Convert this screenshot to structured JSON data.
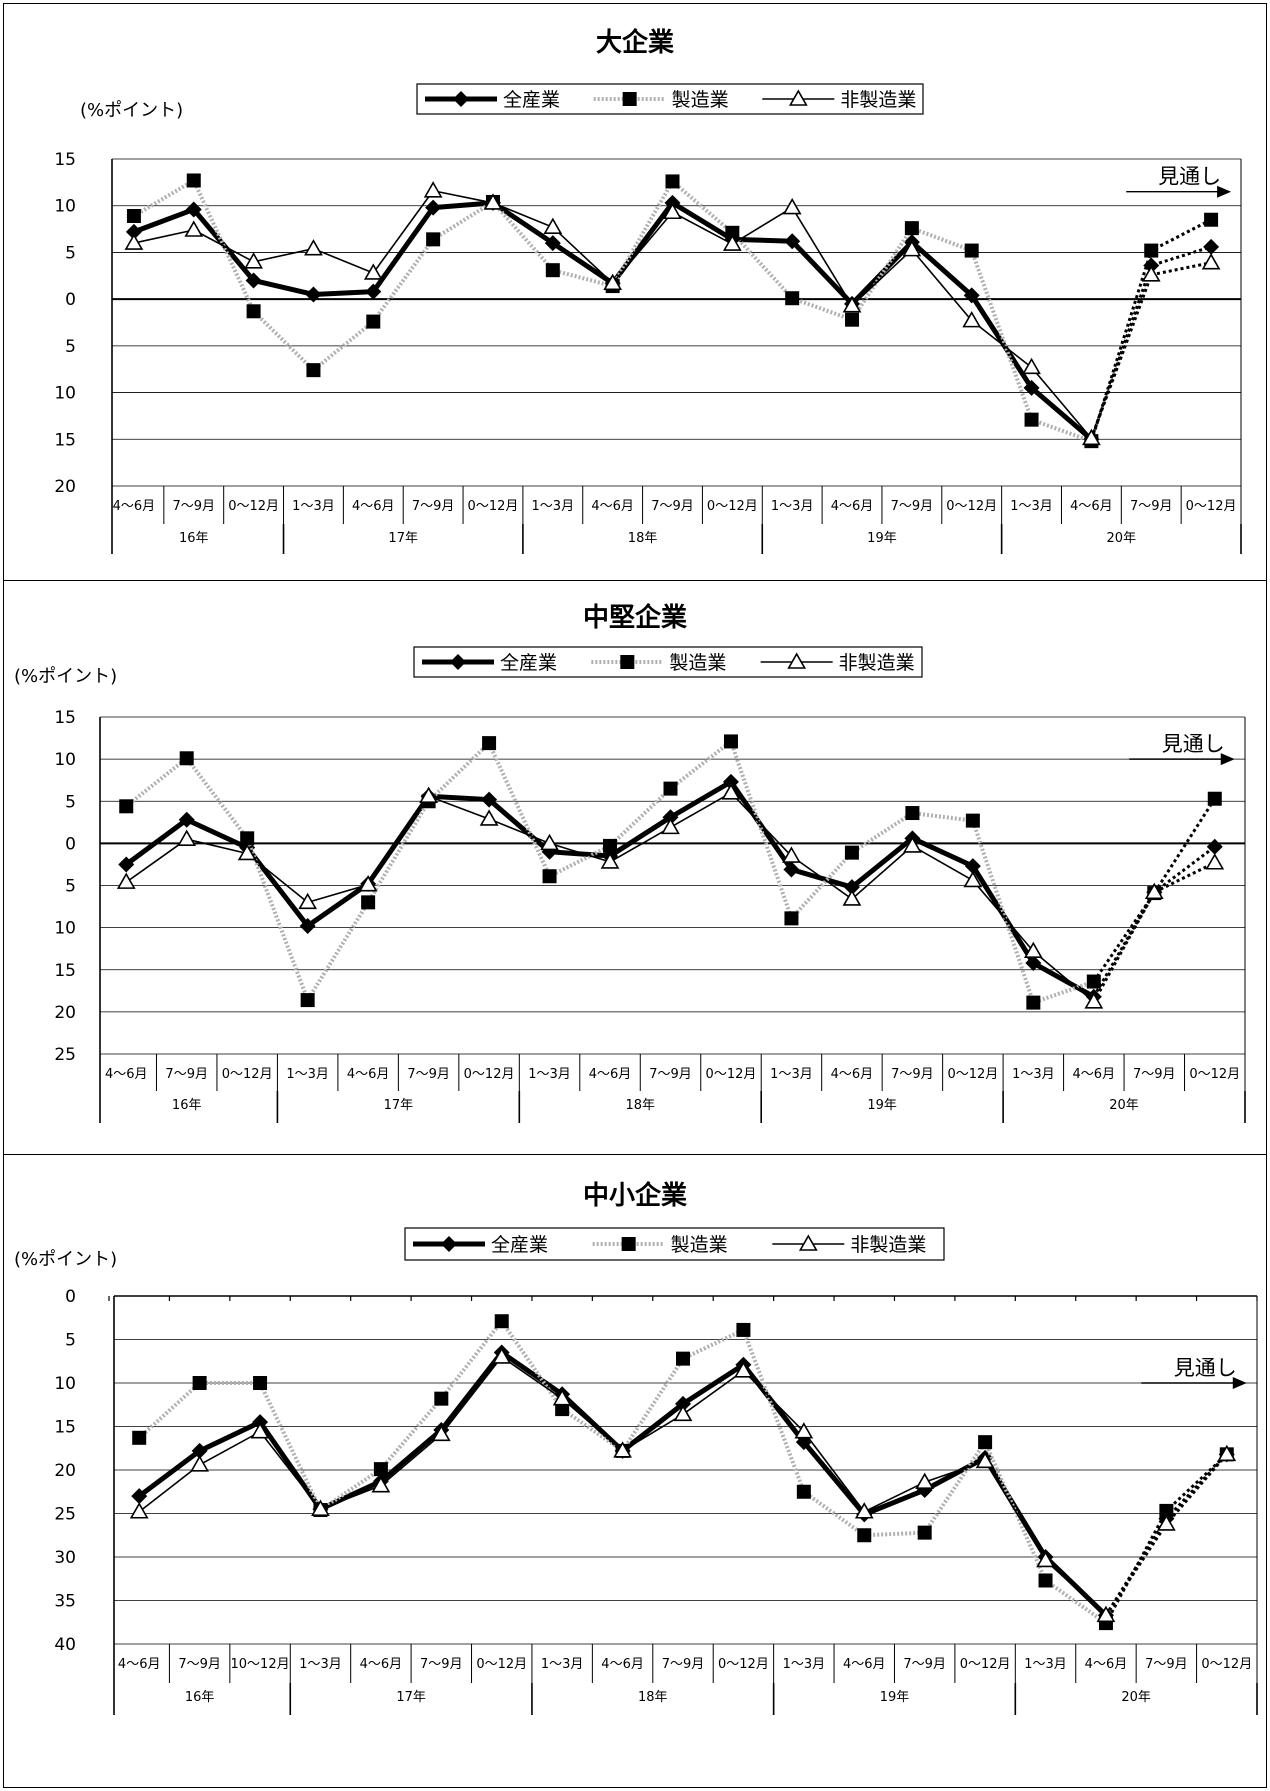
{
  "chart_data": [
    {
      "type": "line",
      "title": "大企業",
      "ylabel": "(%ポイント)",
      "ylim": [
        -20,
        15
      ],
      "y_ticks": [
        15,
        10,
        5,
        0,
        -5,
        -10,
        -15,
        -20
      ],
      "y_tick_labels": [
        "15",
        "10",
        "5",
        "0",
        "5",
        "10",
        "15",
        "20"
      ],
      "grid": true,
      "legend": "top-center",
      "categories": [
        "4～6月",
        "7～9月",
        "10～12月",
        "1～3月",
        "4～6月",
        "7～9月",
        "10～12月",
        "1～3月",
        "4～6月",
        "7～9月",
        "10～12月",
        "1～3月",
        "4～6月",
        "7～9月",
        "10～12月",
        "1～3月",
        "4～6月",
        "7～9月",
        "10～12月"
      ],
      "category_labels": [
        "4～6月",
        "7～9月",
        "0～12月",
        "1～3月",
        "4～6月",
        "7～9月",
        "0～12月",
        "1～3月",
        "4～6月",
        "7～9月",
        "0～12月",
        "1～3月",
        "4～6月",
        "7～9月",
        "0～12月",
        "1～3月",
        "4～6月",
        "7～9月",
        "0～12月"
      ],
      "years": [
        {
          "label": "16年",
          "start": 0,
          "end": 2
        },
        {
          "label": "17年",
          "start": 3,
          "end": 6
        },
        {
          "label": "18年",
          "start": 7,
          "end": 10
        },
        {
          "label": "19年",
          "start": 11,
          "end": 14
        },
        {
          "label": "20年",
          "start": 15,
          "end": 18
        }
      ],
      "forecast_label": "見通し",
      "forecast_start_index": 17,
      "series": [
        {
          "name": "全産業",
          "values": [
            7.2,
            9.6,
            2.0,
            0.5,
            0.8,
            9.8,
            10.3,
            6.0,
            1.7,
            10.3,
            6.4,
            6.2,
            -0.5,
            6.1,
            0.4,
            -9.5,
            -15.0,
            3.6,
            5.6
          ]
        },
        {
          "name": "製造業",
          "values": [
            8.9,
            12.7,
            -1.3,
            -7.6,
            -2.4,
            6.4,
            10.4,
            3.1,
            1.4,
            12.6,
            7.1,
            0.1,
            -2.2,
            7.6,
            5.2,
            -12.9,
            -15.2,
            5.2,
            8.5
          ]
        },
        {
          "name": "非製造業",
          "values": [
            6.0,
            7.4,
            4.0,
            5.4,
            2.8,
            11.6,
            10.3,
            7.7,
            1.7,
            9.3,
            5.9,
            9.8,
            -0.7,
            5.3,
            -2.3,
            -7.3,
            -14.9,
            2.6,
            3.9
          ]
        }
      ]
    },
    {
      "type": "line",
      "title": "中堅企業",
      "ylabel": "(%ポイント)",
      "ylim": [
        -25,
        15
      ],
      "y_ticks": [
        15,
        10,
        5,
        0,
        -5,
        -10,
        -15,
        -20,
        -25
      ],
      "y_tick_labels": [
        "15",
        "10",
        "5",
        "0",
        "5",
        "10",
        "15",
        "20",
        "25"
      ],
      "grid": true,
      "legend": "top-center",
      "categories": [
        "4～6月",
        "7～9月",
        "10～12月",
        "1～3月",
        "4～6月",
        "7～9月",
        "10～12月",
        "1～3月",
        "4～6月",
        "7～9月",
        "10～12月",
        "1～3月",
        "4～6月",
        "7～9月",
        "10～12月",
        "1～3月",
        "4～6月",
        "7～9月",
        "10～12月"
      ],
      "category_labels": [
        "4～6月",
        "7～9月",
        "0～12月",
        "1～3月",
        "4～6月",
        "7～9月",
        "0～12月",
        "1～3月",
        "4～6月",
        "7～9月",
        "0～12月",
        "1～3月",
        "4～6月",
        "7～9月",
        "0～12月",
        "1～3月",
        "4～6月",
        "7～9月",
        "0～12月"
      ],
      "years": [
        {
          "label": "16年",
          "start": 0,
          "end": 2
        },
        {
          "label": "17年",
          "start": 3,
          "end": 6
        },
        {
          "label": "18年",
          "start": 7,
          "end": 10
        },
        {
          "label": "19年",
          "start": 11,
          "end": 14
        },
        {
          "label": "20年",
          "start": 15,
          "end": 18
        }
      ],
      "forecast_label": "見通し",
      "forecast_start_index": 17,
      "series": [
        {
          "name": "全産業",
          "values": [
            -2.5,
            2.8,
            -0.5,
            -9.8,
            -4.8,
            5.6,
            5.2,
            -1.0,
            -1.5,
            3.1,
            7.3,
            -3.1,
            -5.2,
            0.6,
            -2.7,
            -14.2,
            -18.2,
            -5.8,
            -0.4
          ]
        },
        {
          "name": "製造業",
          "values": [
            4.4,
            10.1,
            0.6,
            -18.6,
            -7.0,
            5.0,
            11.9,
            -3.9,
            -0.3,
            6.5,
            12.1,
            -8.9,
            -1.1,
            3.6,
            2.7,
            -18.9,
            -16.4,
            -5.9,
            5.3
          ]
        },
        {
          "name": "非製造業",
          "values": [
            -4.6,
            0.5,
            -1.2,
            -7.0,
            -4.9,
            5.6,
            2.9,
            0.0,
            -2.2,
            1.9,
            6.0,
            -1.5,
            -6.6,
            -0.3,
            -4.4,
            -12.8,
            -18.8,
            -5.8,
            -2.3
          ]
        }
      ]
    },
    {
      "type": "line",
      "title": "中小企業",
      "ylabel": "(%ポイント)",
      "ylim": [
        -40,
        0
      ],
      "y_ticks": [
        0,
        -5,
        -10,
        -15,
        -20,
        -25,
        -30,
        -35,
        -40
      ],
      "y_tick_labels": [
        "0",
        "5",
        "10",
        "15",
        "20",
        "25",
        "30",
        "35",
        "40"
      ],
      "grid": true,
      "legend": "top-center",
      "categories": [
        "4～6月",
        "7～9月",
        "10～12月",
        "1～3月",
        "4～6月",
        "7～9月",
        "10～12月",
        "1～3月",
        "4～6月",
        "7～9月",
        "10～12月",
        "1～3月",
        "4～6月",
        "7～9月",
        "10～12月",
        "1～3月",
        "4～6月",
        "7～9月",
        "10～12月"
      ],
      "category_labels": [
        "4～6月",
        "7～9月",
        "10～12月",
        "1～3月",
        "4～6月",
        "7～9月",
        "0～12月",
        "1～3月",
        "4～6月",
        "7～9月",
        "0～12月",
        "1～3月",
        "4～6月",
        "7～9月",
        "0～12月",
        "1～3月",
        "4～6月",
        "7～9月",
        "0～12月"
      ],
      "years": [
        {
          "label": "16年",
          "start": 0,
          "end": 2
        },
        {
          "label": "17年",
          "start": 3,
          "end": 6
        },
        {
          "label": "18年",
          "start": 7,
          "end": 10
        },
        {
          "label": "19年",
          "start": 11,
          "end": 14
        },
        {
          "label": "20年",
          "start": 15,
          "end": 18
        }
      ],
      "forecast_label": "見通し",
      "forecast_start_index": 17,
      "series": [
        {
          "name": "全産業",
          "values": [
            -23.0,
            -17.8,
            -14.5,
            -24.5,
            -21.3,
            -15.4,
            -6.5,
            -11.3,
            -17.8,
            -12.4,
            -7.9,
            -16.8,
            -25.1,
            -22.3,
            -18.6,
            -30.0,
            -36.7,
            -25.6,
            -18.2
          ]
        },
        {
          "name": "製造業",
          "values": [
            -16.3,
            -10.0,
            -10.0,
            -24.6,
            -19.9,
            -11.8,
            -2.9,
            -13.0,
            -17.8,
            -7.2,
            -3.9,
            -22.5,
            -27.5,
            -27.2,
            -16.8,
            -32.7,
            -37.6,
            -24.7,
            -18.2
          ]
        },
        {
          "name": "非製造業",
          "values": [
            -24.8,
            -19.4,
            -15.6,
            -24.5,
            -21.8,
            -15.9,
            -7.0,
            -11.8,
            -17.8,
            -13.6,
            -8.6,
            -15.6,
            -24.8,
            -21.4,
            -19.0,
            -30.4,
            -36.7,
            -26.2,
            -18.2
          ]
        }
      ]
    }
  ]
}
